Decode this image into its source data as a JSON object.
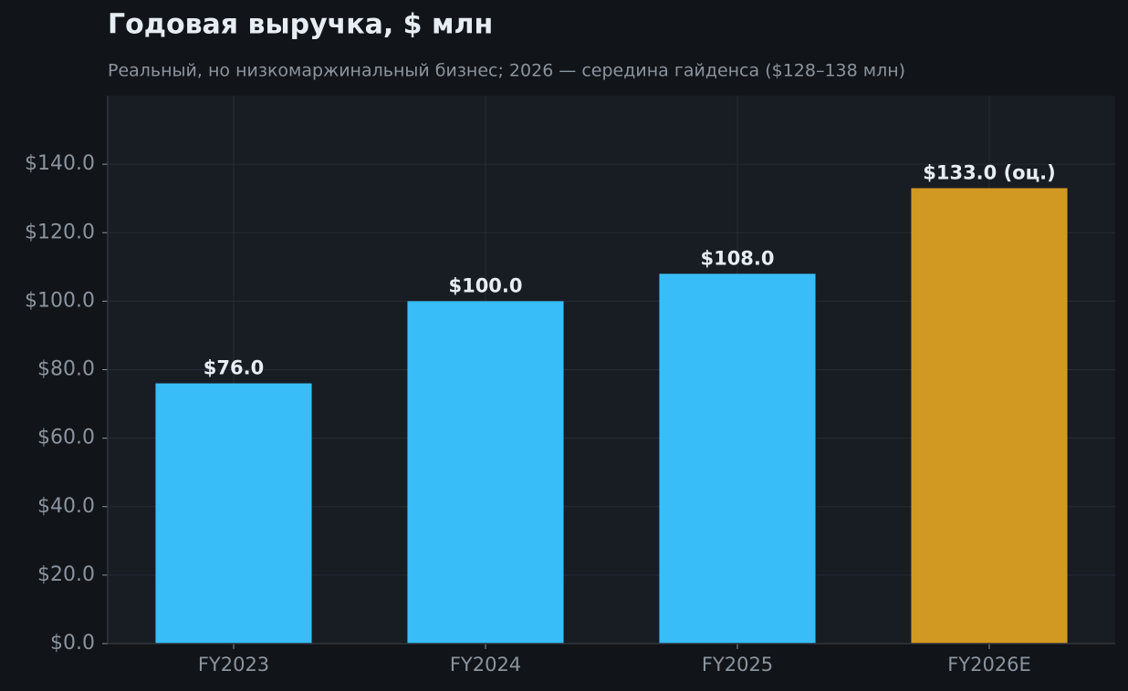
{
  "chart_data": {
    "type": "bar",
    "title": "Годовая выручка, $ млн",
    "subtitle": "Реальный, но низкомаржинальный бизнес; 2026 — середина гайденса ($128–138 млн)",
    "categories": [
      "FY2023",
      "FY2024",
      "FY2025",
      "FY2026E"
    ],
    "values": [
      76.0,
      100.0,
      108.0,
      133.0
    ],
    "value_labels": [
      "$76.0",
      "$100.0",
      "$108.0",
      "$133.0 (оц.)"
    ],
    "colors": [
      "#38bdf8",
      "#38bdf8",
      "#38bdf8",
      "#d29922"
    ],
    "ylim": [
      0,
      160
    ],
    "yticks": [
      {
        "value": 0,
        "label": "$0.0"
      },
      {
        "value": 20,
        "label": "$20.0"
      },
      {
        "value": 40,
        "label": "$40.0"
      },
      {
        "value": 60,
        "label": "$60.0"
      },
      {
        "value": 80,
        "label": "$80.0"
      },
      {
        "value": 100,
        "label": "$100.0"
      },
      {
        "value": 120,
        "label": "$120.0"
      },
      {
        "value": 140,
        "label": "$140.0"
      }
    ],
    "grid": true
  }
}
